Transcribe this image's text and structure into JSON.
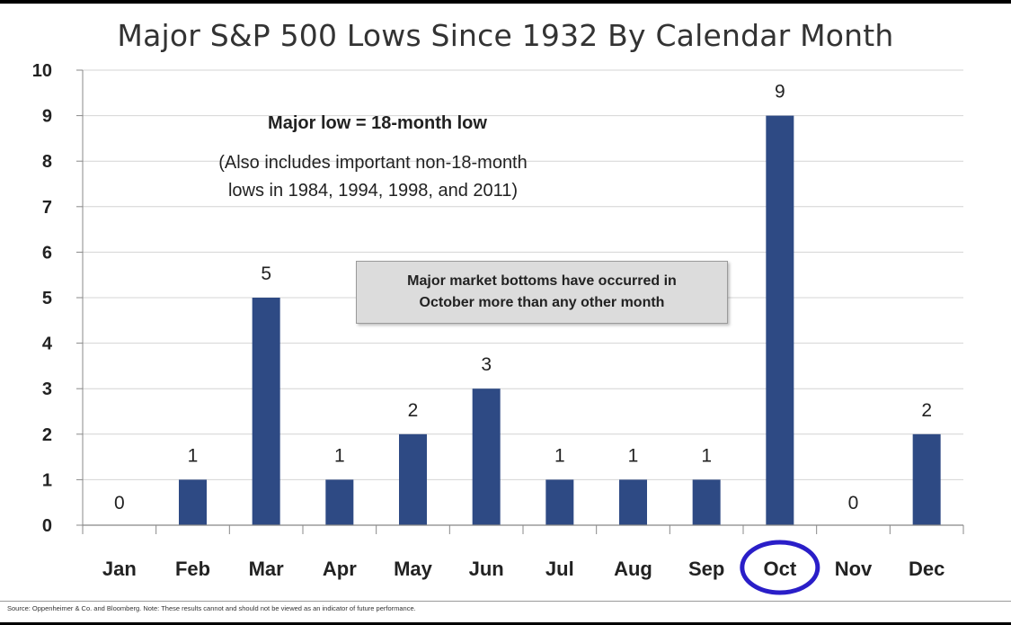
{
  "chart_data": {
    "type": "bar",
    "title": "Major S&P 500 Lows Since 1932 By Calendar Month",
    "categories": [
      "Jan",
      "Feb",
      "Mar",
      "Apr",
      "May",
      "Jun",
      "Jul",
      "Aug",
      "Sep",
      "Oct",
      "Nov",
      "Dec"
    ],
    "values": [
      0,
      1,
      5,
      1,
      2,
      3,
      1,
      1,
      1,
      9,
      0,
      2
    ],
    "ylim": [
      0,
      10
    ],
    "yticks": [
      0,
      1,
      2,
      3,
      4,
      5,
      6,
      7,
      8,
      9,
      10
    ],
    "grid": true,
    "highlight_category": "Oct",
    "bar_color": "#2e4a84",
    "highlight_color": "#2a1ec8",
    "annotation_main": "Major  low = 18-month low",
    "annotation_sub_1": "(Also includes important non-18-month",
    "annotation_sub_2": "lows in 1984, 1994, 1998, and 2011)",
    "callout_line_1": "Major market bottoms have occurred in",
    "callout_line_2": "October more than any other month"
  },
  "source": "Source:  Oppenheimer & Co. and Bloomberg.  Note: These results cannot and should not be viewed as an indicator of future performance."
}
